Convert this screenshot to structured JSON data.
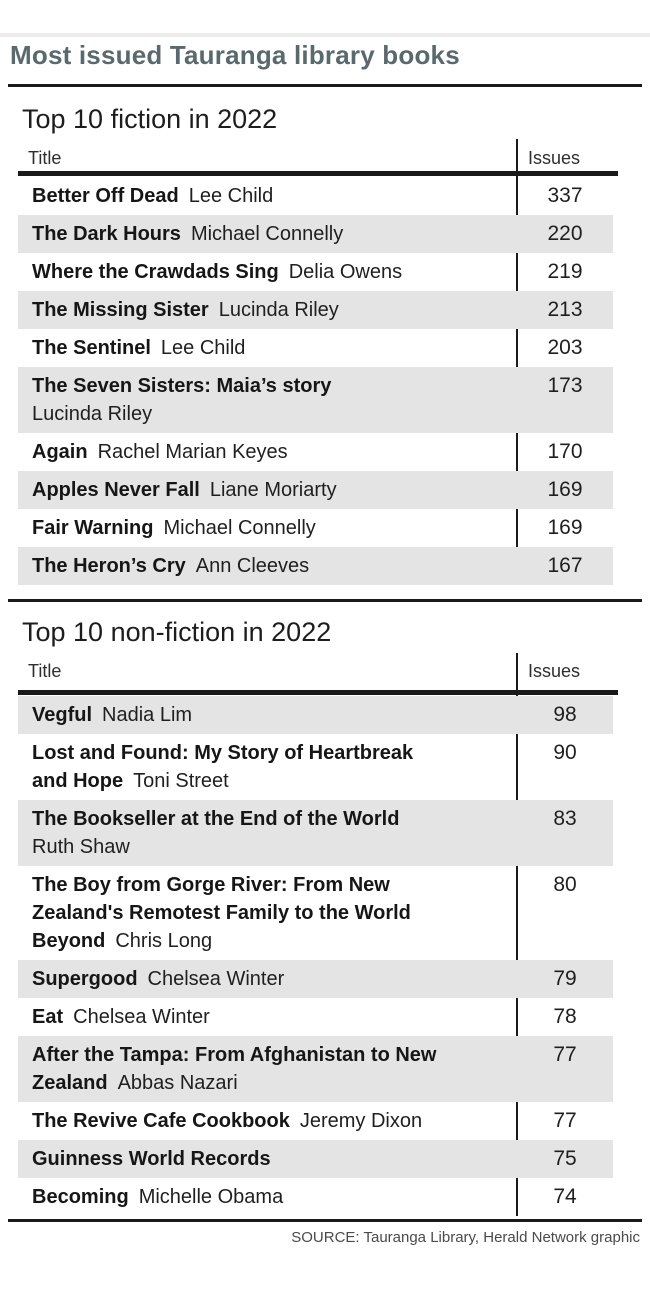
{
  "header": {
    "title": "Most issued Tauranga library books"
  },
  "footer": {
    "source": "SOURCE: Tauranga Library, Herald Network graphic"
  },
  "colors": {
    "title_text": "#5a696d",
    "rules": "#1a1a1a",
    "row_shade": "#e4e4e4",
    "top_hairline": "#ececec",
    "body_text": "#1f1f1f",
    "source_text": "#4a4a4a"
  },
  "chart_data": [
    {
      "type": "table",
      "title": "Top 10 fiction in 2022",
      "columns": [
        "Title",
        "Issues"
      ],
      "row_shading_start": "white",
      "rows": [
        {
          "title": "Better Off Dead",
          "author": "Lee Child",
          "issues": 337,
          "lines": [
            [
              {
                "text": "Better Off Dead",
                "bold": true
              },
              {
                "text": "Lee Child",
                "bold": false
              }
            ]
          ]
        },
        {
          "title": "The Dark Hours",
          "author": "Michael Connelly",
          "issues": 220,
          "lines": [
            [
              {
                "text": "The Dark Hours",
                "bold": true
              },
              {
                "text": "Michael Connelly",
                "bold": false
              }
            ]
          ]
        },
        {
          "title": "Where the Crawdads Sing",
          "author": "Delia Owens",
          "issues": 219,
          "lines": [
            [
              {
                "text": "Where the Crawdads Sing",
                "bold": true
              },
              {
                "text": "Delia Owens",
                "bold": false
              }
            ]
          ]
        },
        {
          "title": "The Missing Sister",
          "author": "Lucinda Riley",
          "issues": 213,
          "lines": [
            [
              {
                "text": "The Missing Sister",
                "bold": true
              },
              {
                "text": "Lucinda Riley",
                "bold": false
              }
            ]
          ]
        },
        {
          "title": "The Sentinel",
          "author": "Lee Child",
          "issues": 203,
          "lines": [
            [
              {
                "text": "The Sentinel",
                "bold": true
              },
              {
                "text": "Lee Child",
                "bold": false
              }
            ]
          ]
        },
        {
          "title": "The Seven Sisters: Maia’s story",
          "author": "Lucinda Riley",
          "issues": 173,
          "lines": [
            [
              {
                "text": "The Seven Sisters: Maia’s story",
                "bold": true
              }
            ],
            [
              {
                "text": "Lucinda Riley",
                "bold": false
              }
            ]
          ]
        },
        {
          "title": "Again",
          "author": "Rachel Marian Keyes",
          "issues": 170,
          "lines": [
            [
              {
                "text": "Again",
                "bold": true
              },
              {
                "text": "Rachel Marian Keyes",
                "bold": false
              }
            ]
          ]
        },
        {
          "title": "Apples Never Fall",
          "author": "Liane Moriarty",
          "issues": 169,
          "lines": [
            [
              {
                "text": "Apples Never Fall",
                "bold": true
              },
              {
                "text": "Liane Moriarty",
                "bold": false
              }
            ]
          ]
        },
        {
          "title": "Fair Warning",
          "author": "Michael Connelly",
          "issues": 169,
          "lines": [
            [
              {
                "text": "Fair Warning",
                "bold": true
              },
              {
                "text": "Michael Connelly",
                "bold": false
              }
            ]
          ]
        },
        {
          "title": "The Heron’s Cry",
          "author": "Ann Cleeves",
          "issues": 167,
          "lines": [
            [
              {
                "text": "The Heron’s Cry",
                "bold": true
              },
              {
                "text": "Ann Cleeves",
                "bold": false
              }
            ]
          ]
        }
      ]
    },
    {
      "type": "table",
      "title": "Top 10 non-fiction in 2022",
      "columns": [
        "Title",
        "Issues"
      ],
      "row_shading_start": "gray",
      "rows": [
        {
          "title": "Vegful",
          "author": "Nadia Lim",
          "issues": 98,
          "lines": [
            [
              {
                "text": "Vegful",
                "bold": true
              },
              {
                "text": "Nadia Lim",
                "bold": false
              }
            ]
          ]
        },
        {
          "title": "Lost and Found: My Story of Heartbreak and Hope",
          "author": "Toni Street",
          "issues": 90,
          "lines": [
            [
              {
                "text": "Lost and Found: My Story of Heartbreak",
                "bold": true
              }
            ],
            [
              {
                "text": "and Hope",
                "bold": true
              },
              {
                "text": "Toni Street",
                "bold": false
              }
            ]
          ]
        },
        {
          "title": "The Bookseller at the End of the World",
          "author": "Ruth Shaw",
          "issues": 83,
          "lines": [
            [
              {
                "text": "The Bookseller at the End of the World",
                "bold": true
              }
            ],
            [
              {
                "text": "Ruth Shaw",
                "bold": false
              }
            ]
          ]
        },
        {
          "title": "The Boy from Gorge River: From New Zealand's Remotest Family to the World Beyond",
          "author": "Chris Long",
          "issues": 80,
          "lines": [
            [
              {
                "text": "The Boy from Gorge River: From New",
                "bold": true
              }
            ],
            [
              {
                "text": "Zealand's Remotest Family to the World",
                "bold": true
              }
            ],
            [
              {
                "text": "Beyond",
                "bold": true
              },
              {
                "text": "Chris Long",
                "bold": false
              }
            ]
          ]
        },
        {
          "title": "Supergood",
          "author": "Chelsea Winter",
          "issues": 79,
          "lines": [
            [
              {
                "text": "Supergood",
                "bold": true
              },
              {
                "text": "Chelsea Winter",
                "bold": false
              }
            ]
          ]
        },
        {
          "title": "Eat",
          "author": "Chelsea Winter",
          "issues": 78,
          "lines": [
            [
              {
                "text": "Eat",
                "bold": true
              },
              {
                "text": "Chelsea Winter",
                "bold": false
              }
            ]
          ]
        },
        {
          "title": "After the Tampa: From Afghanistan to New Zealand",
          "author": "Abbas Nazari",
          "issues": 77,
          "lines": [
            [
              {
                "text": "After the Tampa: From Afghanistan to New",
                "bold": true
              }
            ],
            [
              {
                "text": "Zealand",
                "bold": true
              },
              {
                "text": "Abbas Nazari",
                "bold": false
              }
            ]
          ]
        },
        {
          "title": "The Revive Cafe Cookbook",
          "author": "Jeremy Dixon",
          "issues": 77,
          "lines": [
            [
              {
                "text": "The Revive Cafe Cookbook",
                "bold": true
              },
              {
                "text": "Jeremy Dixon",
                "bold": false
              }
            ]
          ]
        },
        {
          "title": "Guinness World Records",
          "author": "",
          "issues": 75,
          "lines": [
            [
              {
                "text": "Guinness World Records",
                "bold": true
              }
            ]
          ]
        },
        {
          "title": "Becoming",
          "author": "Michelle Obama",
          "issues": 74,
          "lines": [
            [
              {
                "text": "Becoming",
                "bold": true
              },
              {
                "text": "Michelle Obama",
                "bold": false
              }
            ]
          ]
        }
      ]
    }
  ]
}
